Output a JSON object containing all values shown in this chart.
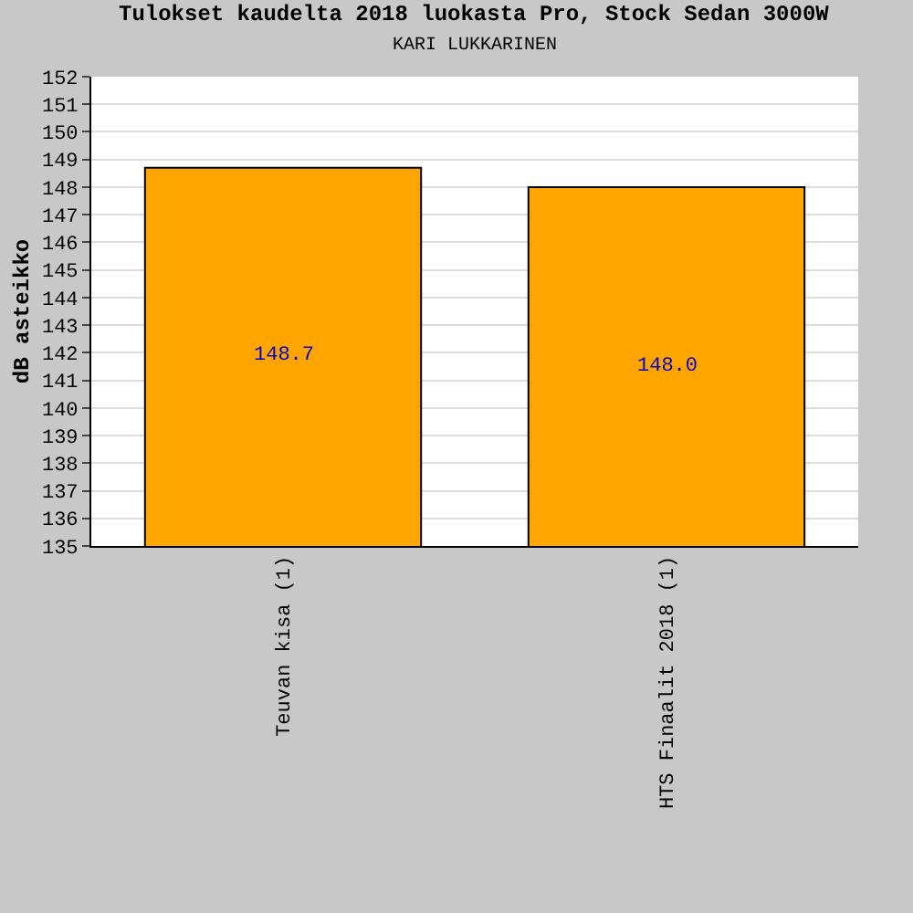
{
  "chart_data": {
    "type": "bar",
    "title": "Tulokset kaudelta 2018 luokasta Pro, Stock Sedan 3000W",
    "subtitle": "KARI LUKKARINEN",
    "ylabel": "dB asteikko",
    "categories": [
      "Teuvan kisa (1)",
      "HTS Finaalit 2018 (1)"
    ],
    "values": [
      148.7,
      148.0
    ],
    "color": "#ffa500",
    "data_labels": true,
    "value_labels": [
      "148.7",
      "148.0"
    ],
    "ylim": [
      135,
      152
    ],
    "yticks": [
      135,
      136,
      137,
      138,
      139,
      140,
      141,
      142,
      143,
      144,
      145,
      146,
      147,
      148,
      149,
      150,
      151,
      152
    ],
    "grid": "y",
    "legend": false
  }
}
